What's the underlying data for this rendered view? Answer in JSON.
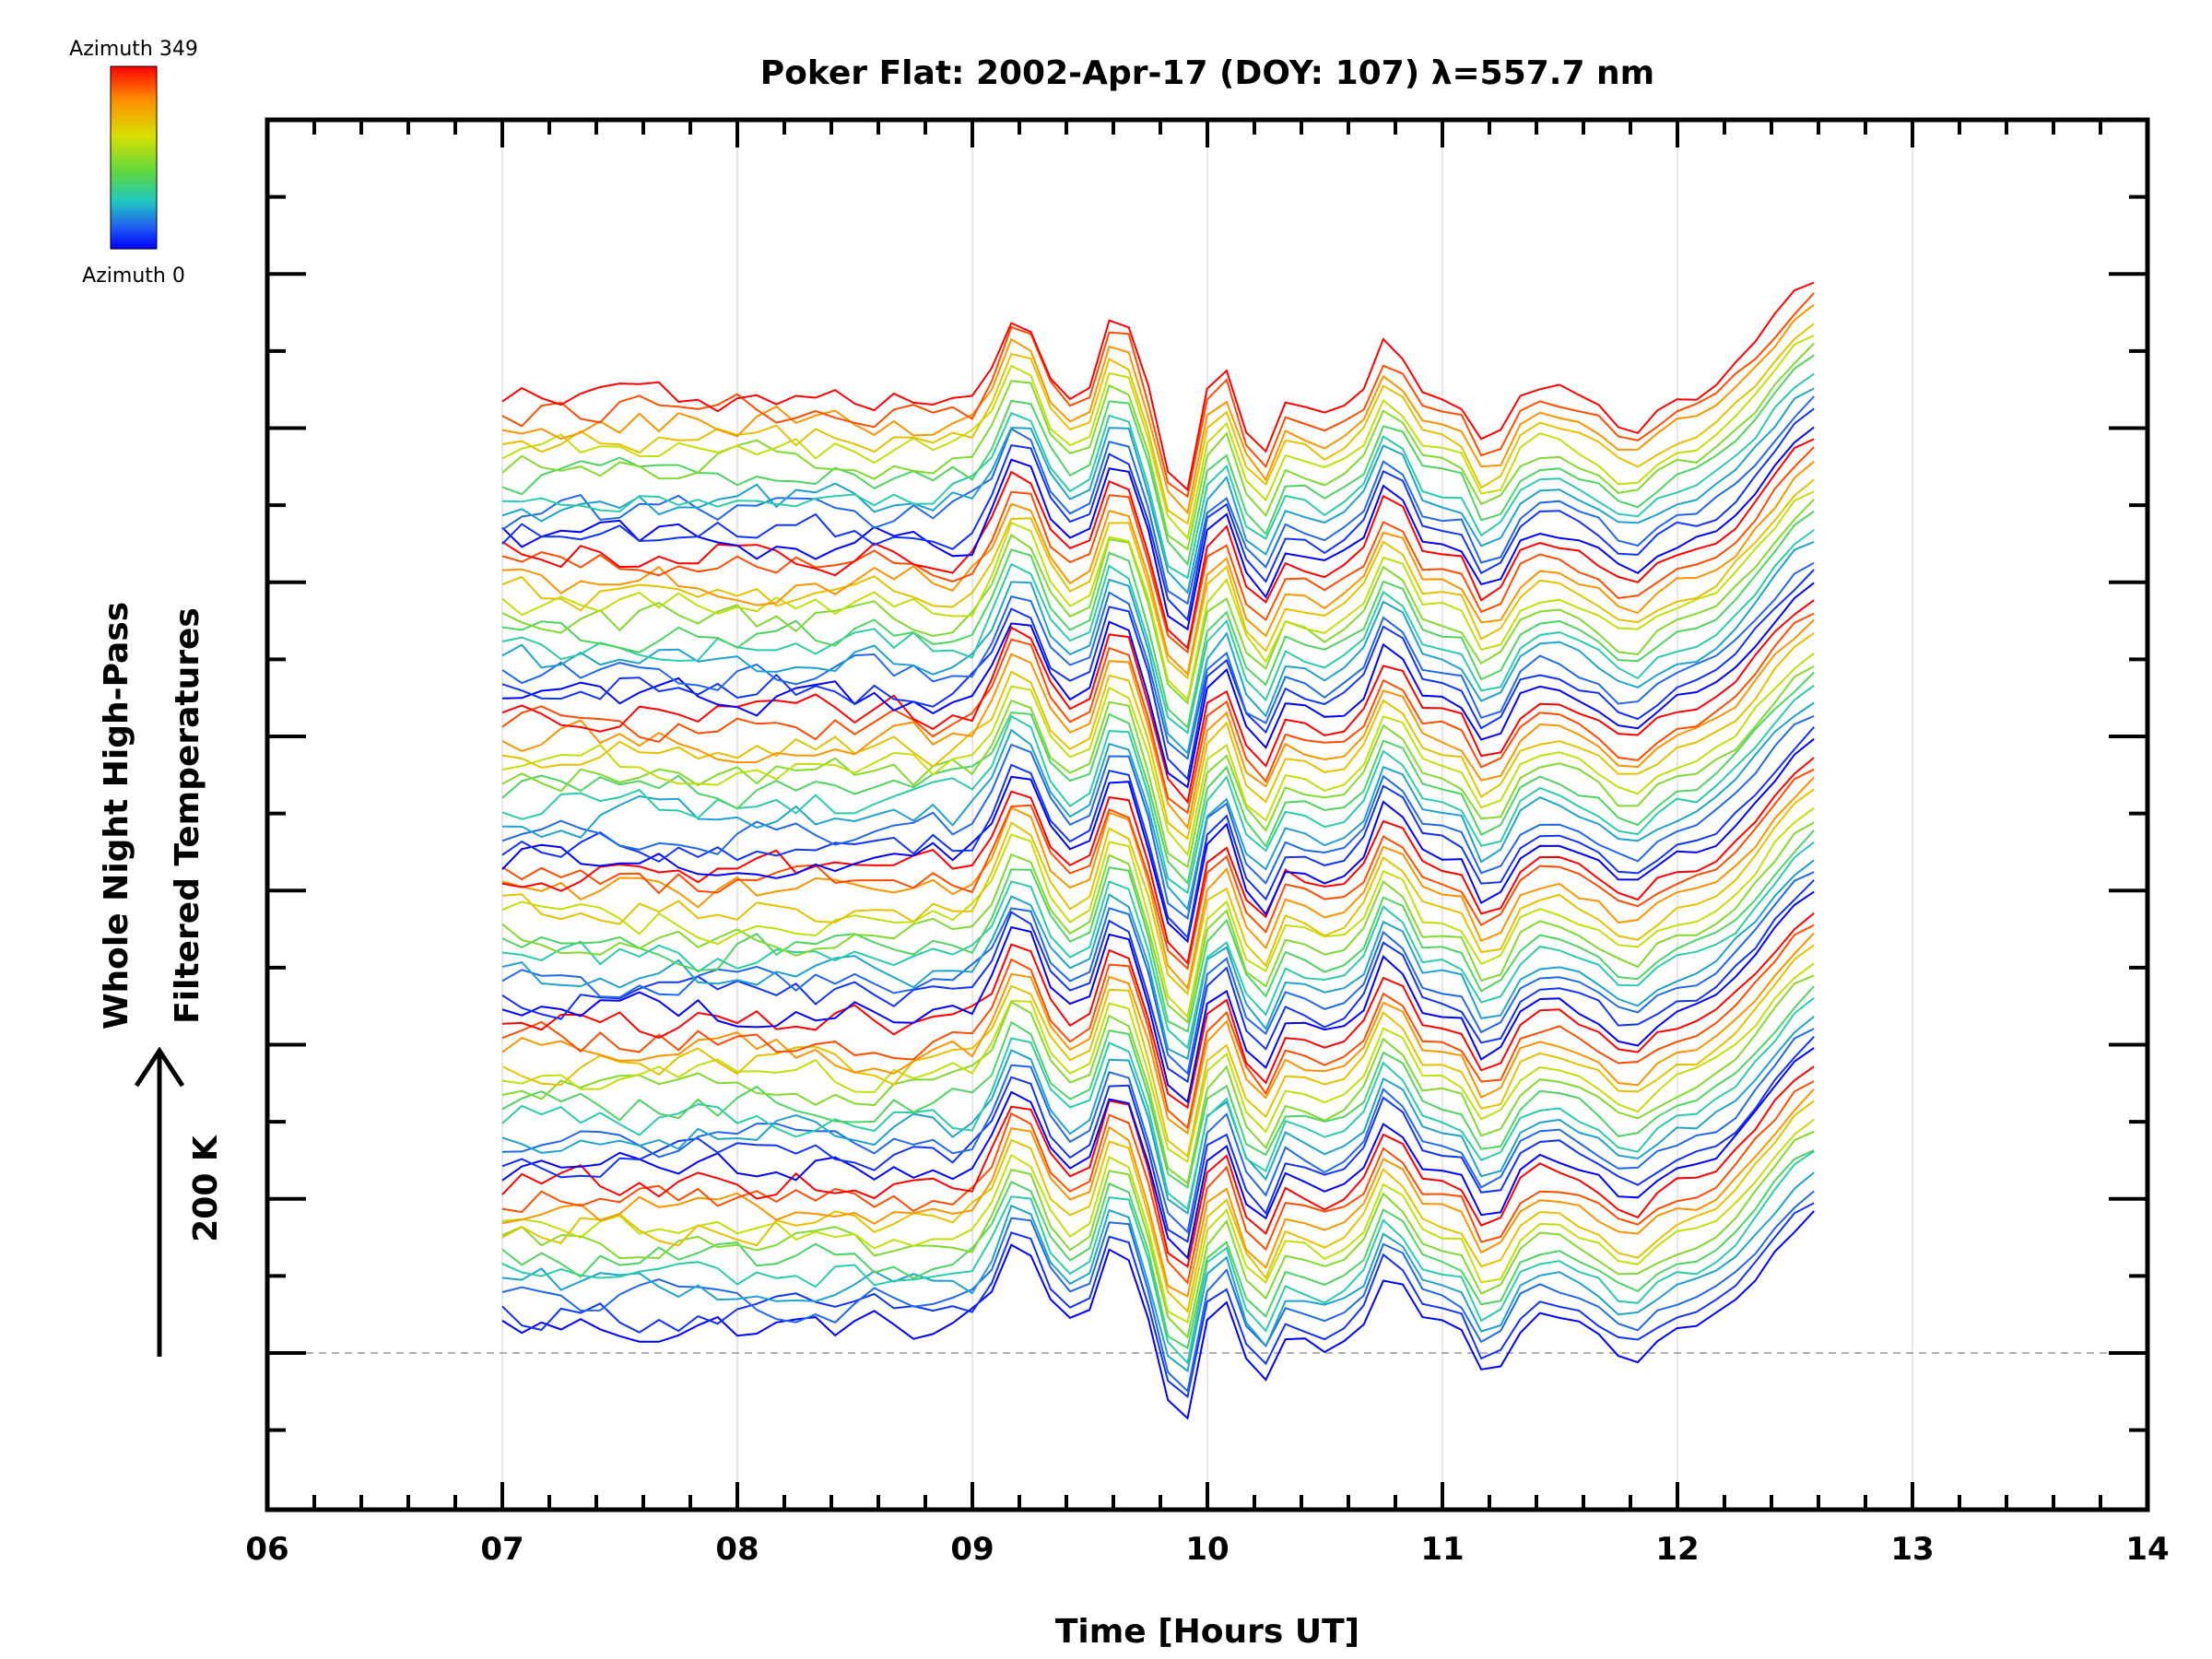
{
  "chart_data": {
    "type": "line",
    "title": "Poker Flat: 2002-Apr-17 (DOY: 107) λ=557.7 nm",
    "xlabel": "Time [Hours UT]",
    "ylabel_line1": "Whole Night High-Pass",
    "ylabel_line2": "Filtered Temperatures",
    "scale_label": "200 K",
    "xlim": [
      6,
      14
    ],
    "x_tick_labels": [
      "06",
      "07",
      "08",
      "09",
      "10",
      "11",
      "12",
      "13",
      "14"
    ],
    "x_ticks": [
      6,
      7,
      8,
      9,
      10,
      11,
      12,
      13,
      14
    ],
    "x_grid": [
      7,
      8,
      9,
      10,
      11,
      12,
      13
    ],
    "baseline_dashed": true,
    "colorbar": {
      "top_label": "Azimuth 349",
      "bottom_label": "Azimuth 0",
      "colors": [
        "#ff0000",
        "#ff8c00",
        "#d8e000",
        "#60d840",
        "#20c8c0",
        "#2060f0",
        "#0000ff"
      ]
    },
    "series_count": 72,
    "curves_per_group": 12,
    "x_start": 7.0,
    "x_end": 12.65,
    "x_step": 0.0833,
    "wave_features": [
      {
        "x": 9.2,
        "amplitude": 1.0,
        "width": 0.12
      },
      {
        "x": 9.62,
        "amplitude": 1.05,
        "width": 0.09
      },
      {
        "x": 9.88,
        "amplitude": -1.3,
        "width": 0.07
      },
      {
        "x": 10.05,
        "amplitude": 0.45,
        "width": 0.05
      },
      {
        "x": 10.22,
        "amplitude": -0.7,
        "width": 0.07
      },
      {
        "x": 10.5,
        "amplitude": -0.25,
        "width": 0.12
      },
      {
        "x": 10.78,
        "amplitude": 0.7,
        "width": 0.08
      },
      {
        "x": 11.2,
        "amplitude": -0.6,
        "width": 0.08
      },
      {
        "x": 11.45,
        "amplitude": 0.15,
        "width": 0.1
      },
      {
        "x": 11.8,
        "amplitude": -0.35,
        "width": 0.12
      },
      {
        "x": 12.6,
        "amplitude": 0.9,
        "width": 0.3
      }
    ]
  }
}
